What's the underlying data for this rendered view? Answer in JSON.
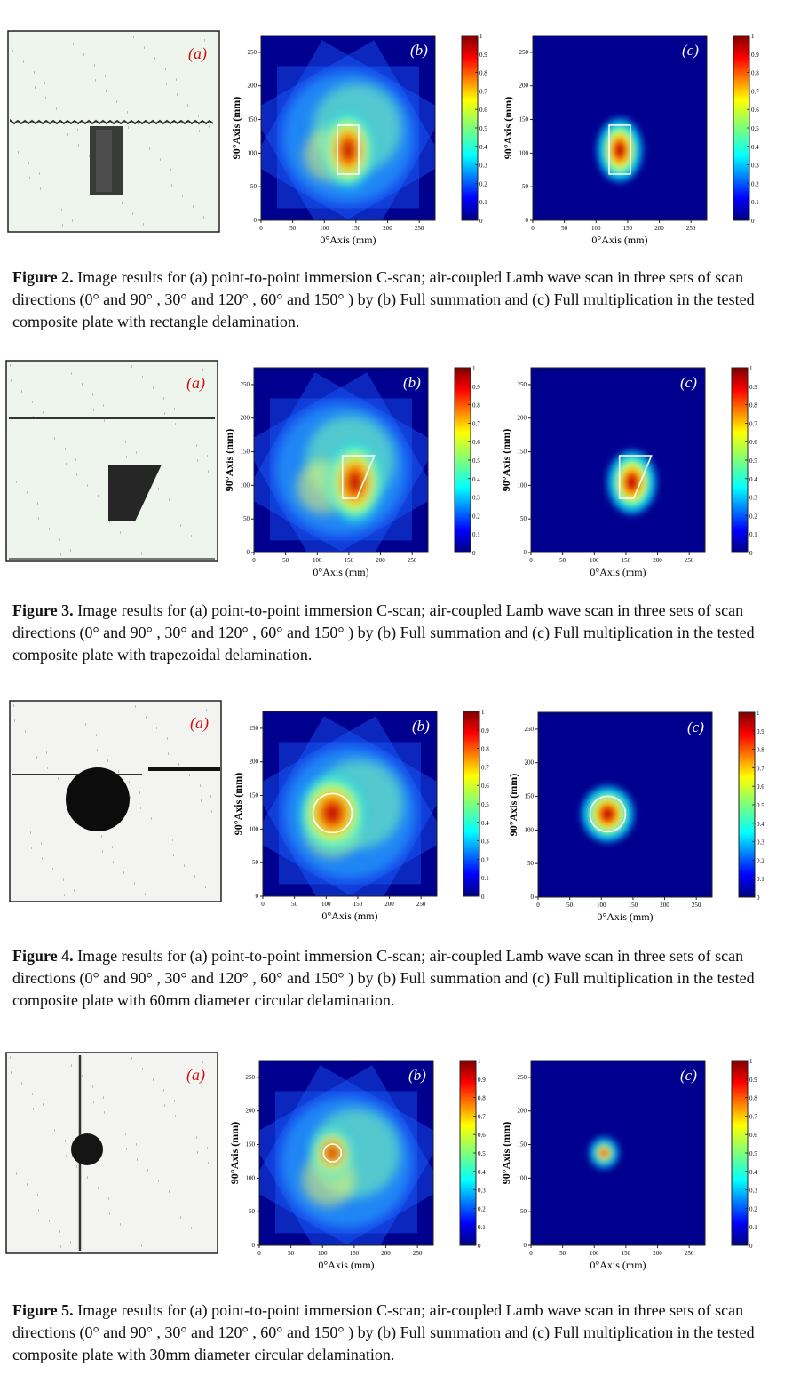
{
  "axes": {
    "xlabel": "0°Axis (mm)",
    "ylabel": "90°Axis (mm)",
    "xticks": [
      "0",
      "50",
      "100",
      "150",
      "200",
      "250"
    ],
    "yticks": [
      "0",
      "50",
      "100",
      "150",
      "200",
      "250"
    ],
    "cbar_ticks": [
      "1",
      "0.9",
      "0.8",
      "0.7",
      "0.6",
      "0.5",
      "0.4",
      "0.3",
      "0.2",
      "0.1",
      "0"
    ]
  },
  "panel_labels": {
    "a": "(a)",
    "b": "(b)",
    "c": "(c)"
  },
  "figures": [
    {
      "id": "fig2",
      "defect": "rect",
      "caption_label": "Figure 2.",
      "caption_text": " Image results for (a) point-to-point immersion C-scan; air-coupled Lamb wave scan in three sets of scan directions (0°  and 90° , 30°  and 120° , 60°  and 150° ) by (b) Full summation and (c) Full multiplication in the tested composite plate with rectangle delamination."
    },
    {
      "id": "fig3",
      "defect": "trap",
      "caption_label": "Figure 3.",
      "caption_text": " Image results for (a) point-to-point immersion C-scan; air-coupled Lamb wave scan in three sets of scan directions (0°  and 90° , 30°  and 120° , 60°  and 150° ) by (b) Full summation and (c) Full multiplication in the tested composite plate with trapezoidal delamination."
    },
    {
      "id": "fig4",
      "defect": "circle60",
      "caption_label": "Figure 4.",
      "caption_text": " Image results for (a) point-to-point immersion C-scan; air-coupled Lamb wave scan in three sets of scan directions (0°  and 90° , 30°  and 120° , 60°  and 150° ) by (b) Full summation and (c) Full multiplication in the tested composite plate with 60mm diameter circular delamination."
    },
    {
      "id": "fig5",
      "defect": "circle30",
      "caption_label": "Figure 5.",
      "caption_text": " Image results for (a) point-to-point immersion C-scan; air-coupled Lamb wave scan in three sets of scan directions (0°  and 90° , 30°  and 120° , 60°  and 150° ) by (b) Full summation and (c) Full multiplication in the tested composite plate with 30mm diameter circular delamination."
    }
  ]
}
